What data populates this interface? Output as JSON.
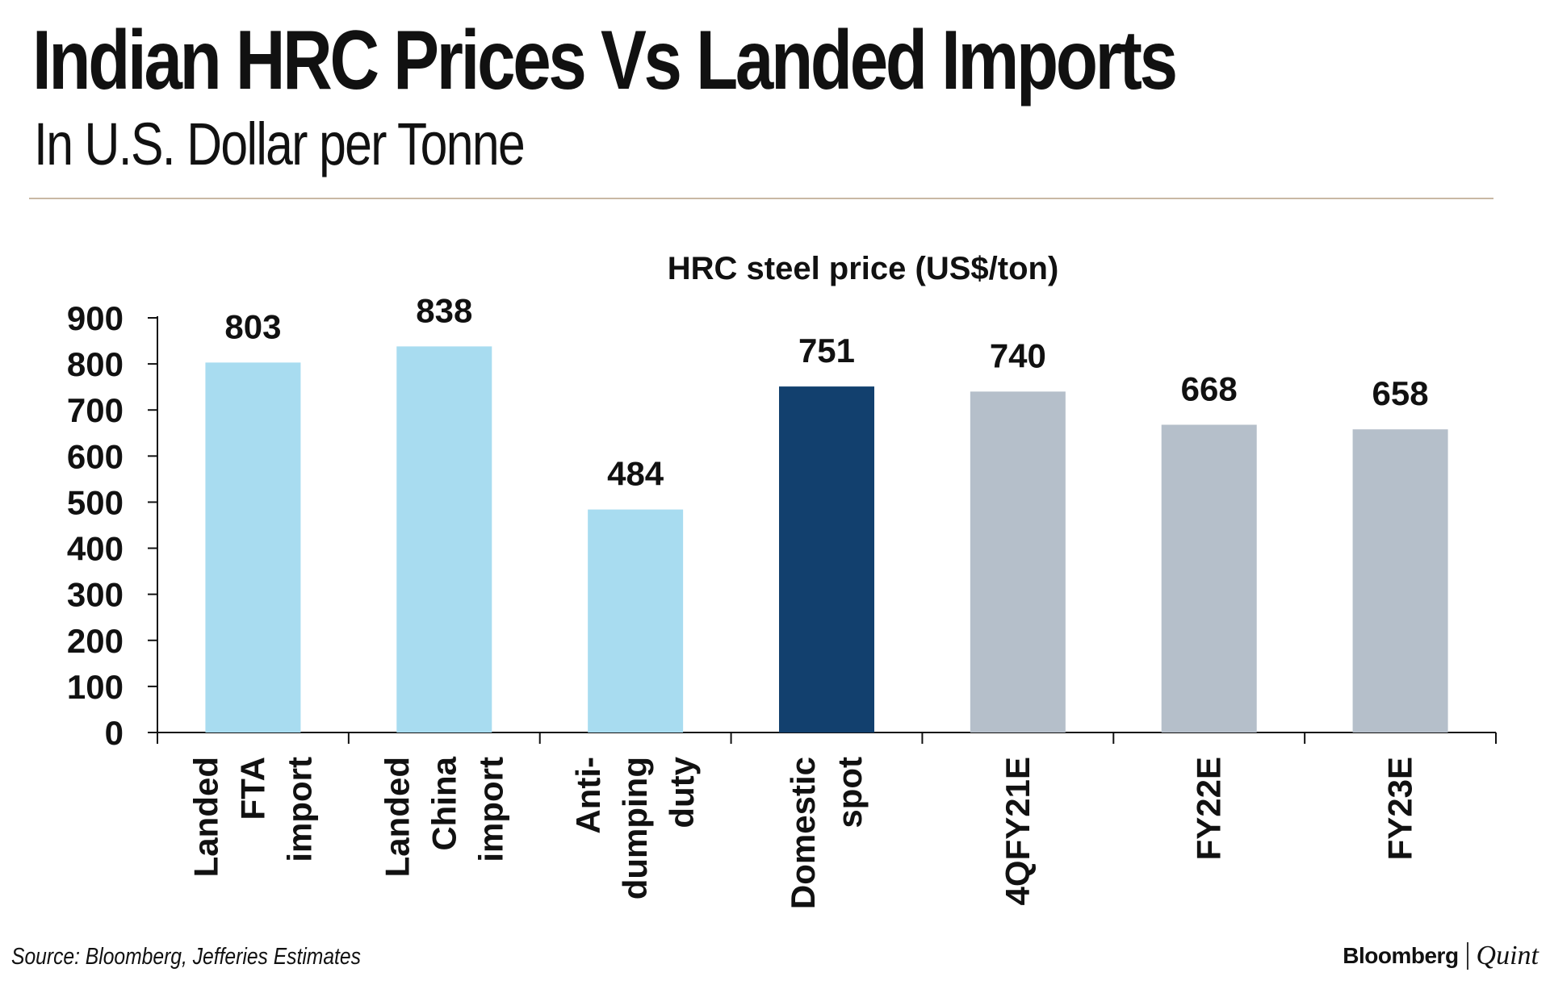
{
  "header": {
    "title": "Indian HRC Prices Vs Landed Imports",
    "subtitle": "In U.S. Dollar per Tonne"
  },
  "footer": {
    "source": "Source: Bloomberg, Jefferies Estimates",
    "brand_primary": "Bloomberg",
    "brand_secondary": "Quint"
  },
  "chart_data": {
    "type": "bar",
    "title": "HRC steel price (US$/ton)",
    "categories": [
      [
        "Landed",
        "FTA",
        "import"
      ],
      [
        "Landed",
        "China",
        "import"
      ],
      [
        "Anti-",
        "dumping",
        "duty"
      ],
      [
        "Domestic",
        "spot"
      ],
      [
        "4QFY21E"
      ],
      [
        "FY22E"
      ],
      [
        "FY23E"
      ]
    ],
    "values": [
      803,
      838,
      484,
      751,
      740,
      668,
      658
    ],
    "colors": [
      "#a8dcf0",
      "#a8dcf0",
      "#a8dcf0",
      "#12406e",
      "#b5bfca",
      "#b5bfca",
      "#b5bfca"
    ],
    "ylim": [
      0,
      900
    ],
    "yticks": [
      0,
      100,
      200,
      300,
      400,
      500,
      600,
      700,
      800,
      900
    ],
    "xlabel": "",
    "ylabel": "",
    "grid": false,
    "data_labels": true,
    "legend": "none"
  }
}
